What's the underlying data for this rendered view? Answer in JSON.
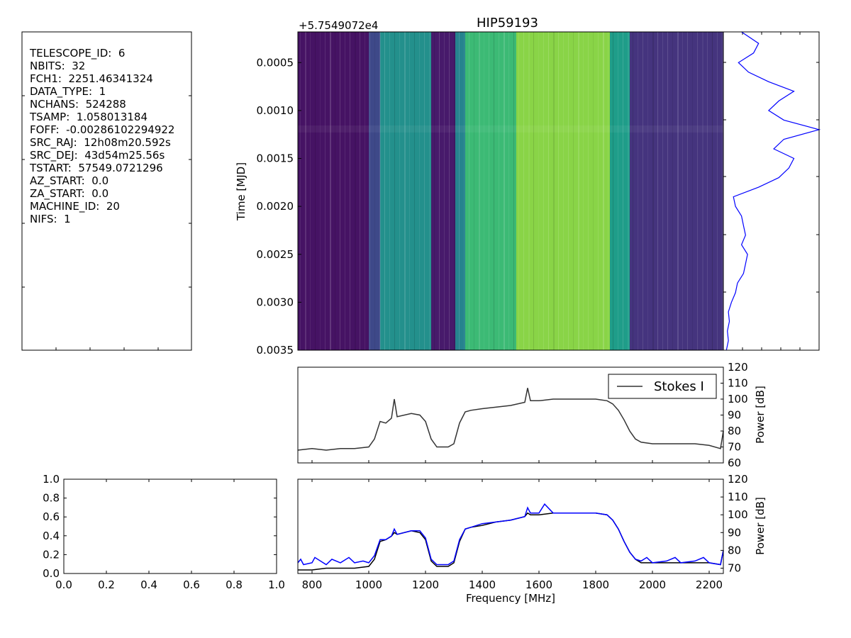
{
  "title": "HIP59193",
  "header": {
    "lines": [
      {
        "key": "TELESCOPE_ID",
        "value": "6"
      },
      {
        "key": "NBITS",
        "value": "32"
      },
      {
        "key": "FCH1",
        "value": "2251.46341324"
      },
      {
        "key": "DATA_TYPE",
        "value": "1"
      },
      {
        "key": "NCHANS",
        "value": "524288"
      },
      {
        "key": "TSAMP",
        "value": "1.058013184"
      },
      {
        "key": "FOFF",
        "value": "-0.00286102294922"
      },
      {
        "key": "SRC_RAJ",
        "value": "12h08m20.592s"
      },
      {
        "key": "SRC_DEJ",
        "value": "43d54m25.56s"
      },
      {
        "key": "TSTART",
        "value": "57549.0721296"
      },
      {
        "key": "AZ_START",
        "value": "0.0"
      },
      {
        "key": "ZA_START",
        "value": "0.0"
      },
      {
        "key": "MACHINE_ID",
        "value": "20"
      },
      {
        "key": "NIFS",
        "value": "1"
      }
    ]
  },
  "chart_data": [
    {
      "id": "waterfall",
      "type": "heatmap",
      "title": "HIP59193",
      "ylabel": "Time [MJD]",
      "offset_label": "+5.7549072e4",
      "ylim": [
        0.00018,
        0.0035
      ],
      "yticks": [
        "0.0005",
        "0.0010",
        "0.0015",
        "0.0020",
        "0.0025",
        "0.0030",
        "0.0035"
      ],
      "ytick_values": [
        0.0005,
        0.001,
        0.0015,
        0.002,
        0.0025,
        0.003,
        0.0035
      ],
      "xlim": [
        750,
        2250
      ],
      "colormap": "viridis",
      "bands": [
        {
          "x0": 750,
          "x1": 1000,
          "level": 0.05
        },
        {
          "x0": 1000,
          "x1": 1040,
          "level": 0.22
        },
        {
          "x0": 1040,
          "x1": 1220,
          "level": 0.5
        },
        {
          "x0": 1220,
          "x1": 1305,
          "level": 0.07
        },
        {
          "x0": 1305,
          "x1": 1340,
          "level": 0.45
        },
        {
          "x0": 1340,
          "x1": 1520,
          "level": 0.68
        },
        {
          "x0": 1520,
          "x1": 1850,
          "level": 0.82
        },
        {
          "x0": 1850,
          "x1": 1920,
          "level": 0.55
        },
        {
          "x0": 1920,
          "x1": 2250,
          "level": 0.15
        }
      ]
    },
    {
      "id": "time_series",
      "type": "line",
      "orientation": "vertical",
      "color": "#0000ff",
      "y_time": [
        0.00018,
        0.0003,
        0.0004,
        0.0005,
        0.0006,
        0.0007,
        0.0008,
        0.0009,
        0.001,
        0.0011,
        0.0012,
        0.0013,
        0.0014,
        0.0015,
        0.0016,
        0.0017,
        0.0018,
        0.0019,
        0.002,
        0.0021,
        0.0022,
        0.0023,
        0.0024,
        0.0025,
        0.0026,
        0.0027,
        0.0028,
        0.0029,
        0.003,
        0.0031,
        0.0032,
        0.0033,
        0.0034,
        0.0035
      ],
      "values": [
        0.18,
        0.35,
        0.3,
        0.15,
        0.25,
        0.45,
        0.7,
        0.55,
        0.45,
        0.6,
        0.95,
        0.6,
        0.5,
        0.7,
        0.65,
        0.55,
        0.35,
        0.1,
        0.12,
        0.18,
        0.2,
        0.22,
        0.18,
        0.24,
        0.22,
        0.2,
        0.14,
        0.12,
        0.08,
        0.05,
        0.06,
        0.04,
        0.05,
        0.03
      ]
    },
    {
      "id": "spectrum_stokes",
      "type": "line",
      "ylabel": "Power [dB]",
      "ylim": [
        60,
        120
      ],
      "yticks": [
        "60",
        "70",
        "80",
        "90",
        "100",
        "110",
        "120"
      ],
      "ytick_values": [
        60,
        70,
        80,
        90,
        100,
        110,
        120
      ],
      "xlim": [
        750,
        2250
      ],
      "legend": {
        "label": "Stokes I",
        "location": "upper right"
      },
      "series": [
        {
          "name": "Stokes I",
          "color": "#333333",
          "x": [
            750,
            800,
            850,
            900,
            950,
            1000,
            1020,
            1040,
            1060,
            1080,
            1090,
            1100,
            1150,
            1180,
            1200,
            1220,
            1240,
            1260,
            1280,
            1300,
            1320,
            1340,
            1360,
            1400,
            1450,
            1500,
            1550,
            1560,
            1570,
            1600,
            1650,
            1700,
            1750,
            1800,
            1840,
            1860,
            1880,
            1900,
            1920,
            1940,
            1960,
            2000,
            2050,
            2100,
            2150,
            2200,
            2240,
            2250
          ],
          "y": [
            68,
            69,
            68,
            69,
            69,
            70,
            75,
            86,
            85,
            88,
            100,
            89,
            91,
            90,
            86,
            75,
            70,
            70,
            70,
            72,
            85,
            92,
            93,
            94,
            95,
            96,
            98,
            107,
            99,
            99,
            100,
            100,
            100,
            100,
            99,
            97,
            93,
            87,
            80,
            75,
            73,
            72,
            72,
            72,
            72,
            71,
            69,
            80
          ]
        }
      ]
    },
    {
      "id": "spectrum_bottom",
      "type": "line",
      "xlabel": "Frequency [MHz]",
      "ylabel": "Power [dB]",
      "xlim": [
        750,
        2250
      ],
      "xticks": [
        "800",
        "1000",
        "1200",
        "1400",
        "1600",
        "1800",
        "2000",
        "2200"
      ],
      "xtick_values": [
        800,
        1000,
        1200,
        1400,
        1600,
        1800,
        2000,
        2200
      ],
      "ylim": [
        67,
        120
      ],
      "yticks": [
        "70",
        "80",
        "90",
        "100",
        "110",
        "120"
      ],
      "ytick_values": [
        70,
        80,
        90,
        100,
        110,
        120
      ],
      "series": [
        {
          "color": "#000000",
          "x": [
            750,
            800,
            850,
            900,
            950,
            1000,
            1020,
            1040,
            1060,
            1080,
            1090,
            1100,
            1150,
            1180,
            1200,
            1220,
            1240,
            1260,
            1280,
            1300,
            1320,
            1340,
            1360,
            1400,
            1450,
            1500,
            1550,
            1560,
            1570,
            1600,
            1650,
            1700,
            1750,
            1800,
            1840,
            1860,
            1880,
            1900,
            1920,
            1940,
            1960,
            2000,
            2050,
            2100,
            2150,
            2200,
            2240,
            2250
          ],
          "y": [
            69,
            69,
            70,
            70,
            70,
            71,
            75,
            85,
            86,
            88,
            90,
            89,
            91,
            90,
            86,
            74,
            71,
            71,
            71,
            73,
            85,
            92,
            93,
            94,
            96,
            97,
            99,
            101,
            100,
            100,
            101,
            101,
            101,
            101,
            100,
            97,
            92,
            85,
            79,
            75,
            73,
            73,
            73,
            73,
            73,
            73,
            72,
            80
          ]
        },
        {
          "color": "#0000ff",
          "x": [
            750,
            760,
            770,
            800,
            810,
            850,
            870,
            900,
            930,
            950,
            980,
            1000,
            1020,
            1040,
            1060,
            1080,
            1090,
            1100,
            1150,
            1180,
            1200,
            1220,
            1240,
            1260,
            1280,
            1300,
            1320,
            1340,
            1360,
            1400,
            1450,
            1500,
            1550,
            1560,
            1570,
            1600,
            1620,
            1650,
            1700,
            1750,
            1800,
            1840,
            1860,
            1880,
            1900,
            1920,
            1940,
            1960,
            1980,
            2000,
            2050,
            2080,
            2100,
            2150,
            2180,
            2200,
            2240,
            2250
          ],
          "y": [
            73,
            75,
            72,
            73,
            76,
            72,
            75,
            73,
            76,
            73,
            74,
            73,
            77,
            86,
            86,
            88,
            92,
            89,
            91,
            91,
            87,
            75,
            72,
            72,
            72,
            74,
            86,
            92,
            93,
            95,
            96,
            97,
            99,
            104,
            101,
            101,
            106,
            101,
            101,
            101,
            101,
            100,
            97,
            92,
            85,
            79,
            75,
            74,
            76,
            73,
            74,
            76,
            73,
            74,
            76,
            73,
            72,
            80
          ]
        }
      ]
    },
    {
      "id": "empty_axes",
      "type": "line",
      "xlim": [
        0,
        1
      ],
      "ylim": [
        0,
        1
      ],
      "xticks": [
        "0.0",
        "0.2",
        "0.4",
        "0.6",
        "0.8",
        "1.0"
      ],
      "yticks": [
        "0.0",
        "0.2",
        "0.4",
        "0.6",
        "0.8",
        "1.0"
      ],
      "tick_values": [
        0,
        0.2,
        0.4,
        0.6,
        0.8,
        1.0
      ]
    }
  ]
}
